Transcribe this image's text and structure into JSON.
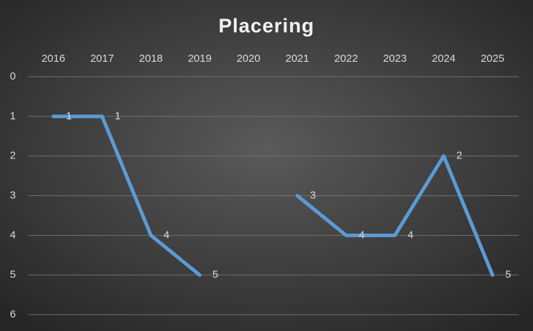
{
  "chart_data": {
    "type": "line",
    "title": "Placering",
    "categories": [
      "2016",
      "2017",
      "2018",
      "2019",
      "2020",
      "2021",
      "2022",
      "2023",
      "2024",
      "2025"
    ],
    "series": [
      {
        "name": "Placering",
        "color": "#5b9bd5",
        "values": [
          1,
          1,
          4,
          5,
          null,
          3,
          4,
          4,
          2,
          5
        ]
      }
    ],
    "ylim": [
      0,
      6
    ],
    "yticks": [
      0,
      1,
      2,
      3,
      4,
      5,
      6
    ],
    "y_reversed": true,
    "grid": true,
    "data_labels": true
  }
}
